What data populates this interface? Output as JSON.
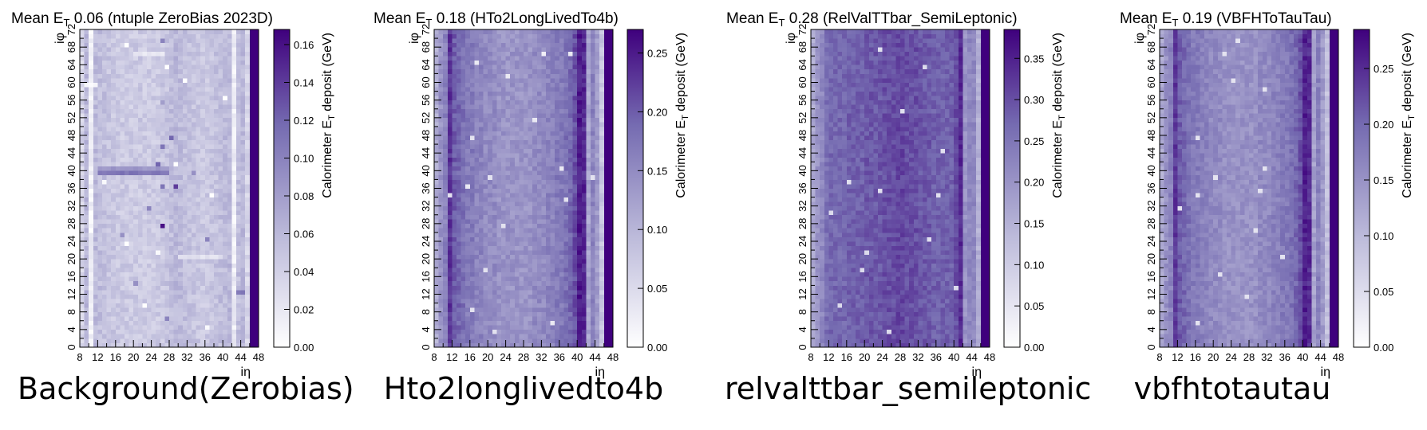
{
  "chart_data": [
    {
      "type": "heatmap",
      "title_prefix": "Mean E",
      "title_sub": "T",
      "title_value": "0.06",
      "title_sample": "(ntuple ZeroBias 2023D)",
      "caption": "Background(Zerobias)",
      "xlabel": "iη",
      "ylabel": "iφ",
      "colorbar_label_main": "Calorimeter E",
      "colorbar_label_sub": "T",
      "colorbar_label_rest": " deposit (GeV)",
      "x_range": [
        8,
        48
      ],
      "y_range": [
        0,
        72
      ],
      "x_ticks": [
        8,
        12,
        16,
        20,
        24,
        28,
        32,
        36,
        40,
        44,
        48
      ],
      "y_ticks": [
        0,
        4,
        8,
        12,
        16,
        20,
        24,
        28,
        32,
        36,
        40,
        44,
        48,
        52,
        56,
        60,
        64,
        68,
        72
      ],
      "z_range": [
        0,
        0.168
      ],
      "z_ticks": [
        0.0,
        0.02,
        0.04,
        0.06,
        0.08,
        0.1,
        0.12,
        0.14,
        0.16
      ],
      "z_tick_labels": [
        "0.00",
        "0.02",
        "0.04",
        "0.06",
        "0.08",
        "0.10",
        "0.12",
        "0.14",
        "0.16"
      ],
      "col_profile": [
        0.035,
        0.06,
        0.012,
        0.058,
        0.055,
        0.052,
        0.05,
        0.048,
        0.046,
        0.045,
        0.045,
        0.044,
        0.045,
        0.045,
        0.044,
        0.044,
        0.045,
        0.046,
        0.048,
        0.05,
        0.055,
        0.06,
        0.058,
        0.054,
        0.052,
        0.05,
        0.048,
        0.046,
        0.047,
        0.05,
        0.052,
        0.055,
        0.058,
        0.06,
        0.015,
        0.055,
        0.06,
        0.035
      ],
      "noise": 0.012,
      "features": [
        {
          "type": "hband",
          "row": 39,
          "x0": 12,
          "x1": 28,
          "value": 0.11
        },
        {
          "type": "hband",
          "row": 40,
          "x0": 12,
          "x1": 28,
          "value": 0.085
        },
        {
          "type": "hband",
          "row": 59,
          "x0": 9,
          "x1": 12,
          "value": 0.005
        },
        {
          "type": "hband",
          "row": 66,
          "x0": 20,
          "x1": 27,
          "value": 0.02
        },
        {
          "type": "hband",
          "row": 20,
          "x0": 30,
          "x1": 40,
          "value": 0.025
        },
        {
          "type": "hband",
          "row": 12,
          "x0": 43,
          "x1": 45,
          "value": 0.11
        }
      ],
      "hot_cells": [
        [
          26,
          27,
          0.16
        ],
        [
          29,
          36,
          0.14
        ],
        [
          26,
          45,
          0.11
        ],
        [
          25,
          41,
          0.12
        ],
        [
          26,
          36,
          0.11
        ],
        [
          28,
          47,
          0.12
        ],
        [
          23,
          31,
          0.1
        ],
        [
          27,
          6,
          0.1
        ],
        [
          26,
          69,
          0.1
        ],
        [
          17,
          25,
          0.09
        ],
        [
          20,
          14,
          0.09
        ],
        [
          36,
          24,
          0.1
        ],
        [
          33,
          39,
          0.09
        ],
        [
          26,
          55,
          0.08
        ]
      ],
      "cold_cells": [
        [
          18,
          68,
          0.0
        ],
        [
          27,
          63,
          0.0
        ],
        [
          31,
          60,
          0.0
        ],
        [
          25,
          21,
          0.005
        ],
        [
          37,
          34,
          0.0
        ],
        [
          18,
          23,
          0.0
        ],
        [
          13,
          37,
          0.005
        ],
        [
          22,
          9,
          0.0
        ],
        [
          29,
          41,
          0.0
        ],
        [
          36,
          4,
          0.005
        ],
        [
          40,
          56,
          0.0
        ]
      ]
    },
    {
      "type": "heatmap",
      "title_prefix": "Mean E",
      "title_sub": "T",
      "title_value": "0.18",
      "title_sample": "(HTo2LongLivedTo4b)",
      "caption": "Hto2longlivedto4b",
      "xlabel": "iη",
      "ylabel": "iφ",
      "colorbar_label_main": "Calorimeter E",
      "colorbar_label_sub": "T",
      "colorbar_label_rest": " deposit (GeV)",
      "x_range": [
        8,
        48
      ],
      "y_range": [
        0,
        72
      ],
      "x_ticks": [
        8,
        12,
        16,
        20,
        24,
        28,
        32,
        36,
        40,
        44,
        48
      ],
      "y_ticks": [
        0,
        4,
        8,
        12,
        16,
        20,
        24,
        28,
        32,
        36,
        40,
        44,
        48,
        52,
        56,
        60,
        64,
        68,
        72
      ],
      "z_range": [
        0,
        0.27
      ],
      "z_ticks": [
        0.0,
        0.05,
        0.1,
        0.15,
        0.2,
        0.25
      ],
      "z_tick_labels": [
        "0.00",
        "0.05",
        "0.10",
        "0.15",
        "0.20",
        "0.25"
      ],
      "col_profile": [
        0.11,
        0.14,
        0.16,
        0.23,
        0.2,
        0.19,
        0.18,
        0.17,
        0.17,
        0.16,
        0.16,
        0.15,
        0.15,
        0.15,
        0.14,
        0.14,
        0.14,
        0.14,
        0.14,
        0.14,
        0.14,
        0.14,
        0.15,
        0.15,
        0.15,
        0.16,
        0.16,
        0.17,
        0.17,
        0.18,
        0.19,
        0.21,
        0.25,
        0.24,
        0.12,
        0.16,
        0.13,
        0.08
      ],
      "noise": 0.018,
      "features": [],
      "hot_cells": [],
      "cold_cells": [
        [
          32,
          66,
          0.02
        ],
        [
          38,
          66,
          0.03
        ],
        [
          17,
          64,
          0.03
        ],
        [
          24,
          61,
          0.03
        ],
        [
          30,
          51,
          0.03
        ],
        [
          16,
          47,
          0.04
        ],
        [
          20,
          38,
          0.04
        ],
        [
          36,
          40,
          0.03
        ],
        [
          15,
          36,
          0.03
        ],
        [
          37,
          33,
          0.04
        ],
        [
          23,
          27,
          0.04
        ],
        [
          19,
          17,
          0.04
        ],
        [
          16,
          8,
          0.04
        ],
        [
          34,
          5,
          0.03
        ],
        [
          21,
          3,
          0.04
        ],
        [
          11,
          34,
          0.04
        ],
        [
          43,
          38,
          0.04
        ]
      ]
    },
    {
      "type": "heatmap",
      "title_prefix": "Mean E",
      "title_sub": "T",
      "title_value": "0.28",
      "title_sample": "(RelValTTbar_SemiLeptonic)",
      "caption": "relvalttbar_semileptonic",
      "xlabel": "iη",
      "ylabel": "iφ",
      "colorbar_label_main": "Calorimeter E",
      "colorbar_label_sub": "T",
      "colorbar_label_rest": " deposit (GeV)",
      "x_range": [
        8,
        48
      ],
      "y_range": [
        0,
        72
      ],
      "x_ticks": [
        8,
        12,
        16,
        20,
        24,
        28,
        32,
        36,
        40,
        44,
        48
      ],
      "y_ticks": [
        0,
        4,
        8,
        12,
        16,
        20,
        24,
        28,
        32,
        36,
        40,
        44,
        48,
        52,
        56,
        60,
        64,
        68,
        72
      ],
      "z_range": [
        0,
        0.385
      ],
      "z_ticks": [
        0.0,
        0.05,
        0.1,
        0.15,
        0.2,
        0.25,
        0.3,
        0.35
      ],
      "z_tick_labels": [
        "0.00",
        "0.05",
        "0.10",
        "0.15",
        "0.20",
        "0.25",
        "0.30",
        "0.35"
      ],
      "col_profile": [
        0.16,
        0.2,
        0.22,
        0.26,
        0.27,
        0.27,
        0.27,
        0.27,
        0.28,
        0.28,
        0.28,
        0.28,
        0.29,
        0.29,
        0.29,
        0.29,
        0.3,
        0.3,
        0.3,
        0.31,
        0.31,
        0.3,
        0.3,
        0.3,
        0.29,
        0.29,
        0.29,
        0.28,
        0.28,
        0.28,
        0.28,
        0.28,
        0.3,
        0.34,
        0.2,
        0.22,
        0.22,
        0.15
      ],
      "noise": 0.022,
      "features": [],
      "hot_cells": [],
      "cold_cells": [
        [
          23,
          67,
          0.06
        ],
        [
          33,
          63,
          0.07
        ],
        [
          28,
          53,
          0.06
        ],
        [
          16,
          37,
          0.06
        ],
        [
          12,
          30,
          0.07
        ],
        [
          23,
          35,
          0.06
        ],
        [
          36,
          34,
          0.06
        ],
        [
          20,
          21,
          0.07
        ],
        [
          34,
          24,
          0.06
        ],
        [
          19,
          17,
          0.07
        ],
        [
          14,
          9,
          0.07
        ],
        [
          25,
          3,
          0.07
        ],
        [
          37,
          44,
          0.06
        ],
        [
          40,
          13,
          0.07
        ]
      ]
    },
    {
      "type": "heatmap",
      "title_prefix": "Mean E",
      "title_sub": "T",
      "title_value": "0.19",
      "title_sample": "(VBFHToTauTau)",
      "caption": "vbfhtotautau",
      "xlabel": "iη",
      "ylabel": "iφ",
      "colorbar_label_main": "Calorimeter E",
      "colorbar_label_sub": "T",
      "colorbar_label_rest": " deposit (GeV)",
      "x_range": [
        8,
        48
      ],
      "y_range": [
        0,
        72
      ],
      "x_ticks": [
        8,
        12,
        16,
        20,
        24,
        28,
        32,
        36,
        40,
        44,
        48
      ],
      "y_ticks": [
        0,
        4,
        8,
        12,
        16,
        20,
        24,
        28,
        32,
        36,
        40,
        44,
        48,
        52,
        56,
        60,
        64,
        68,
        72
      ],
      "z_range": [
        0,
        0.285
      ],
      "z_ticks": [
        0.0,
        0.05,
        0.1,
        0.15,
        0.2,
        0.25
      ],
      "z_tick_labels": [
        "0.00",
        "0.05",
        "0.10",
        "0.15",
        "0.20",
        "0.25"
      ],
      "col_profile": [
        0.12,
        0.15,
        0.17,
        0.24,
        0.21,
        0.2,
        0.19,
        0.18,
        0.18,
        0.17,
        0.17,
        0.16,
        0.16,
        0.16,
        0.15,
        0.15,
        0.15,
        0.15,
        0.15,
        0.15,
        0.15,
        0.15,
        0.16,
        0.16,
        0.16,
        0.17,
        0.17,
        0.18,
        0.18,
        0.19,
        0.2,
        0.22,
        0.26,
        0.25,
        0.13,
        0.17,
        0.14,
        0.09
      ],
      "noise": 0.018,
      "features": [],
      "hot_cells": [],
      "cold_cells": [
        [
          25,
          69,
          0.04
        ],
        [
          22,
          66,
          0.04
        ],
        [
          24,
          60,
          0.04
        ],
        [
          31,
          58,
          0.04
        ],
        [
          20,
          38,
          0.04
        ],
        [
          16,
          34,
          0.04
        ],
        [
          31,
          40,
          0.04
        ],
        [
          30,
          35,
          0.04
        ],
        [
          16,
          47,
          0.04
        ],
        [
          21,
          16,
          0.04
        ],
        [
          35,
          20,
          0.04
        ],
        [
          27,
          11,
          0.04
        ],
        [
          16,
          5,
          0.04
        ],
        [
          29,
          26,
          0.04
        ],
        [
          12,
          31,
          0.04
        ]
      ]
    }
  ]
}
